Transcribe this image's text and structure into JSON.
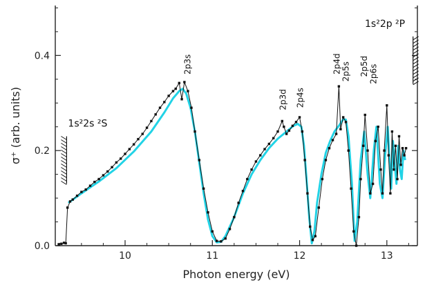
{
  "chart_data": {
    "type": "line",
    "title": "",
    "xlabel": "Photon energy (eV)",
    "ylabel": "σ⁺ (arb. units)",
    "xlim": [
      9.2,
      13.35
    ],
    "ylim": [
      0.0,
      0.505
    ],
    "x_ticks": [
      10,
      11,
      12,
      13
    ],
    "x_tick_labels": [
      "10",
      "11",
      "12",
      "13"
    ],
    "y_ticks": [
      0.0,
      0.2,
      0.4
    ],
    "y_tick_labels": [
      "0.0",
      "0.2",
      "0.4"
    ],
    "grid": false,
    "colors": {
      "experiment": "#111111",
      "theory": "#22d3e6"
    },
    "series": [
      {
        "style": "markers-line",
        "x": [
          9.24,
          9.27,
          9.3,
          9.32,
          9.34,
          9.37,
          9.4,
          9.45,
          9.5,
          9.55,
          9.6,
          9.65,
          9.7,
          9.75,
          9.8,
          9.85,
          9.9,
          9.95,
          10.0,
          10.05,
          10.1,
          10.15,
          10.2,
          10.25,
          10.3,
          10.35,
          10.4,
          10.45,
          10.5,
          10.55,
          10.58,
          10.62,
          10.65,
          10.68,
          10.72,
          10.76,
          10.8,
          10.85,
          10.9,
          10.95,
          11.0,
          11.05,
          11.1,
          11.15,
          11.2,
          11.25,
          11.3,
          11.35,
          11.4,
          11.45,
          11.5,
          11.55,
          11.6,
          11.65,
          11.7,
          11.75,
          11.8,
          11.82,
          11.85,
          11.88,
          11.92,
          11.96,
          12.0,
          12.03,
          12.06,
          12.09,
          12.12,
          12.15,
          12.18,
          12.22,
          12.26,
          12.3,
          12.34,
          12.38,
          12.42,
          12.45,
          12.47,
          12.5,
          12.53,
          12.56,
          12.59,
          12.62,
          12.65,
          12.68,
          12.7,
          12.73,
          12.75,
          12.78,
          12.81,
          12.84,
          12.87,
          12.9,
          12.93,
          12.95,
          12.97,
          13.0,
          13.02,
          13.04,
          13.06,
          13.08,
          13.1,
          13.12,
          13.14,
          13.16,
          13.18,
          13.2,
          13.22
        ],
        "y": [
          0.003,
          0.004,
          0.006,
          0.005,
          0.08,
          0.093,
          0.097,
          0.105,
          0.113,
          0.118,
          0.126,
          0.134,
          0.14,
          0.148,
          0.156,
          0.165,
          0.175,
          0.183,
          0.193,
          0.203,
          0.213,
          0.224,
          0.235,
          0.248,
          0.262,
          0.276,
          0.29,
          0.302,
          0.315,
          0.325,
          0.33,
          0.342,
          0.308,
          0.344,
          0.325,
          0.29,
          0.24,
          0.18,
          0.12,
          0.07,
          0.03,
          0.01,
          0.009,
          0.015,
          0.035,
          0.06,
          0.09,
          0.115,
          0.14,
          0.16,
          0.177,
          0.19,
          0.203,
          0.214,
          0.226,
          0.24,
          0.262,
          0.25,
          0.235,
          0.242,
          0.252,
          0.26,
          0.27,
          0.24,
          0.18,
          0.11,
          0.04,
          0.012,
          0.02,
          0.08,
          0.14,
          0.18,
          0.205,
          0.222,
          0.235,
          0.335,
          0.245,
          0.27,
          0.26,
          0.2,
          0.12,
          0.03,
          0.0,
          0.06,
          0.14,
          0.21,
          0.275,
          0.2,
          0.11,
          0.13,
          0.22,
          0.25,
          0.16,
          0.11,
          0.2,
          0.295,
          0.19,
          0.11,
          0.24,
          0.16,
          0.21,
          0.14,
          0.23,
          0.17,
          0.205,
          0.19,
          0.205
        ]
      },
      {
        "style": "line",
        "x": [
          9.35,
          9.5,
          9.7,
          9.9,
          10.1,
          10.3,
          10.45,
          10.55,
          10.62,
          10.66,
          10.7,
          10.75,
          10.8,
          10.85,
          10.9,
          10.95,
          11.0,
          11.05,
          11.1,
          11.15,
          11.25,
          11.35,
          11.45,
          11.55,
          11.65,
          11.75,
          11.85,
          11.93,
          11.98,
          12.02,
          12.05,
          12.08,
          12.11,
          12.14,
          12.17,
          12.2,
          12.25,
          12.3,
          12.35,
          12.4,
          12.45,
          12.5,
          12.53,
          12.56,
          12.6,
          12.63,
          12.66,
          12.7,
          12.74,
          12.78,
          12.81,
          12.85,
          12.88,
          12.92,
          12.95,
          12.98,
          13.01,
          13.03,
          13.05,
          13.07,
          13.09,
          13.11,
          13.13,
          13.15,
          13.17,
          13.19,
          13.21
        ],
        "y": [
          0.09,
          0.11,
          0.135,
          0.163,
          0.198,
          0.24,
          0.28,
          0.31,
          0.325,
          0.33,
          0.32,
          0.29,
          0.24,
          0.175,
          0.11,
          0.055,
          0.02,
          0.007,
          0.008,
          0.02,
          0.06,
          0.11,
          0.15,
          0.18,
          0.205,
          0.225,
          0.24,
          0.252,
          0.256,
          0.25,
          0.21,
          0.14,
          0.06,
          0.005,
          0.03,
          0.09,
          0.15,
          0.195,
          0.22,
          0.24,
          0.252,
          0.266,
          0.265,
          0.23,
          0.13,
          0.01,
          0.05,
          0.18,
          0.24,
          0.15,
          0.1,
          0.2,
          0.25,
          0.13,
          0.1,
          0.19,
          0.25,
          0.18,
          0.12,
          0.22,
          0.17,
          0.13,
          0.21,
          0.16,
          0.14,
          0.2,
          0.18
        ]
      }
    ],
    "annotations": [
      {
        "text": "2p3s",
        "x": 10.75,
        "rotate": true
      },
      {
        "text": "2p3d",
        "x": 11.84,
        "rotate": true
      },
      {
        "text": "2p4s",
        "x": 12.04,
        "rotate": true
      },
      {
        "text": "2p4d",
        "x": 12.46,
        "rotate": true
      },
      {
        "text": "2p5s",
        "x": 12.56,
        "rotate": true
      },
      {
        "text": "2p5d",
        "x": 12.77,
        "rotate": true
      },
      {
        "text": "2p6s",
        "x": 12.88,
        "rotate": true
      }
    ],
    "thresholds": [
      {
        "text": "1s²2s ²S",
        "x": 9.33,
        "y_from": 0.13,
        "y_to": 0.23
      },
      {
        "text": "1s²2p ²P",
        "x": 13.3,
        "y_from": 0.34,
        "y_to": 0.44
      }
    ]
  }
}
